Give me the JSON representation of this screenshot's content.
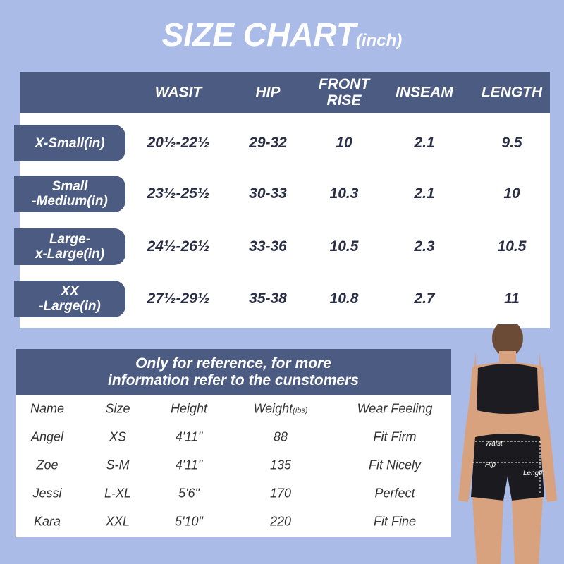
{
  "title": "SIZE CHART",
  "title_unit": "(inch)",
  "size_table": {
    "headers": [
      [
        "WASIT"
      ],
      [
        "HIP"
      ],
      [
        "FRONT",
        "RISE"
      ],
      [
        "INSEAM"
      ],
      [
        "LENGTH"
      ]
    ],
    "rows": [
      {
        "label": [
          "X-Small(in)"
        ],
        "cells": [
          "20½-22½",
          "29-32",
          "10",
          "2.1",
          "9.5"
        ]
      },
      {
        "label": [
          "Small",
          "-Medium(in)"
        ],
        "cells": [
          "23½-25½",
          "30-33",
          "10.3",
          "2.1",
          "10"
        ]
      },
      {
        "label": [
          "Large-",
          "x-Large(in)"
        ],
        "cells": [
          "24½-26½",
          "33-36",
          "10.5",
          "2.3",
          "10.5"
        ]
      },
      {
        "label": [
          "XX",
          "-Large(in)"
        ],
        "cells": [
          "27½-29½",
          "35-38",
          "10.8",
          "2.7",
          "11"
        ]
      }
    ]
  },
  "reference_table": {
    "heading": [
      "Only for reference, for more",
      "information refer to the cunstomers"
    ],
    "columns": [
      "Name",
      "Size",
      "Height",
      "Weight",
      "Wear Feeling"
    ],
    "weight_unit": "(ibs)",
    "rows": [
      [
        "Angel",
        "XS",
        "4'11\"",
        "88",
        "Fit Firm"
      ],
      [
        "Zoe",
        "S-M",
        "4'11\"",
        "135",
        "Fit Nicely"
      ],
      [
        "Jessi",
        "L-XL",
        "5'6\"",
        "170",
        "Perfect"
      ],
      [
        "Kara",
        "XXL",
        "5'10\"",
        "220",
        "Fit Fine"
      ]
    ]
  },
  "figure_labels": {
    "waist": "Waist",
    "hip": "Hip",
    "length": "Length"
  }
}
